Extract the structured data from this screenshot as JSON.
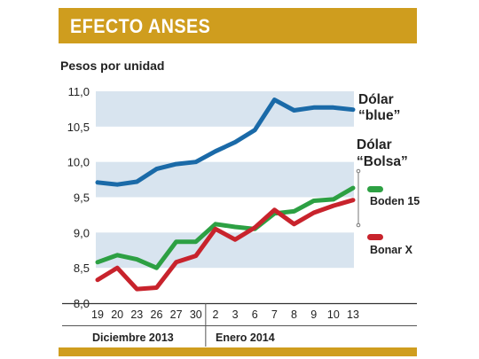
{
  "header": {
    "title": "EFECTO ANSES"
  },
  "chart_data": {
    "type": "line",
    "title": "EFECTO ANSES",
    "ylabel": "Pesos por unidad",
    "ylim": [
      8.0,
      11.0
    ],
    "yticks": [
      "8,0",
      "8,5",
      "9,0",
      "9,5",
      "10,0",
      "10,5",
      "11,0"
    ],
    "ytick_values": [
      8.0,
      8.5,
      9.0,
      9.5,
      10.0,
      10.5,
      11.0
    ],
    "bands": [
      [
        8.5,
        9.0
      ],
      [
        9.5,
        10.0
      ],
      [
        10.5,
        11.0
      ]
    ],
    "categories": [
      "19",
      "20",
      "23",
      "26",
      "27",
      "30",
      "2",
      "3",
      "6",
      "7",
      "8",
      "9",
      "10",
      "13"
    ],
    "groups": [
      {
        "label": "Diciembre 2013",
        "from": 0,
        "to": 5
      },
      {
        "label": "Enero 2014",
        "from": 6,
        "to": 13
      }
    ],
    "series": [
      {
        "name": "Dólar “blue”",
        "label_lines": [
          "Dólar",
          "“blue”"
        ],
        "color": "#1a6aa8",
        "values": [
          9.71,
          9.68,
          9.72,
          9.9,
          9.97,
          10.0,
          10.15,
          10.28,
          10.45,
          10.88,
          10.73,
          10.77,
          10.77,
          10.74
        ]
      },
      {
        "name": "Boden 15",
        "color": "#2da043",
        "values": [
          8.58,
          8.68,
          8.62,
          8.5,
          8.87,
          8.87,
          9.12,
          9.08,
          9.05,
          9.27,
          9.3,
          9.45,
          9.47,
          9.63
        ]
      },
      {
        "name": "Bonar X",
        "color": "#c8232c",
        "values": [
          8.33,
          8.5,
          8.2,
          8.22,
          8.58,
          8.67,
          9.05,
          8.9,
          9.07,
          9.32,
          9.12,
          9.28,
          9.38,
          9.46
        ]
      }
    ],
    "group_label": "Dólar “Bolsa”",
    "group_label_lines": [
      "Dólar",
      "“Bolsa”"
    ],
    "grid": false,
    "legend": "right"
  },
  "colors": {
    "accent": "#cf9d1e",
    "band": "#d8e4ef"
  }
}
